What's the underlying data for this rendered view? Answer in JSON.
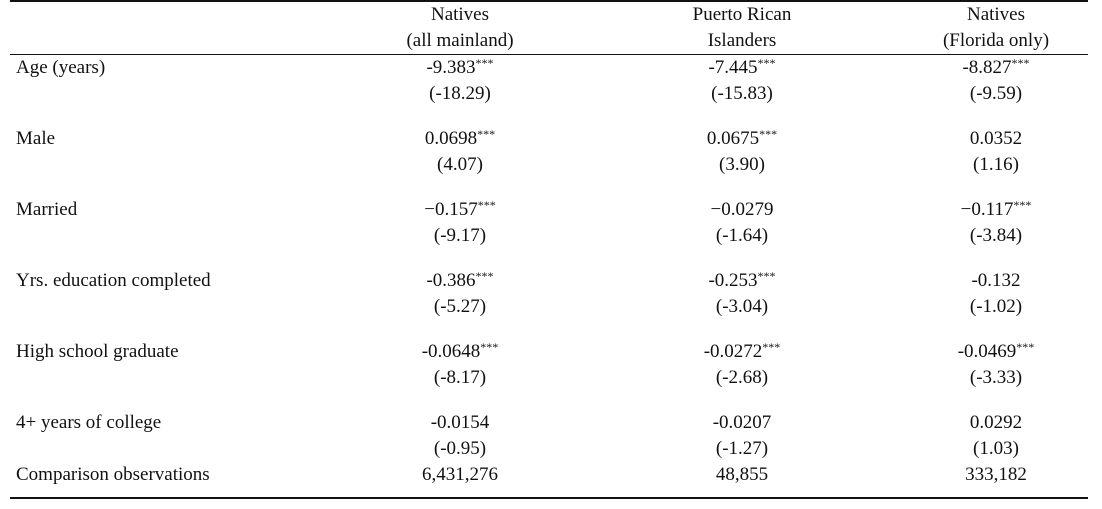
{
  "columns": [
    {
      "line1": "Natives",
      "line2": "(all mainland)"
    },
    {
      "line1": "Puerto Rican",
      "line2": "Islanders"
    },
    {
      "line1": "Natives",
      "line2": "(Florida only)"
    }
  ],
  "rows": [
    {
      "label": "Age (years)",
      "coef": [
        {
          "value": "-9.383",
          "stars": "***"
        },
        {
          "value": "-7.445",
          "stars": "***"
        },
        {
          "value": "-8.827",
          "stars": "***"
        }
      ],
      "tstat": [
        "(-18.29)",
        "(-15.83)",
        "(-9.59)"
      ]
    },
    {
      "label": "Male",
      "coef": [
        {
          "value": "0.0698",
          "stars": "***"
        },
        {
          "value": "0.0675",
          "stars": "***"
        },
        {
          "value": "0.0352",
          "stars": ""
        }
      ],
      "tstat": [
        "(4.07)",
        "(3.90)",
        "(1.16)"
      ]
    },
    {
      "label": "Married",
      "coef": [
        {
          "value": "−0.157",
          "stars": "***"
        },
        {
          "value": "−0.0279",
          "stars": ""
        },
        {
          "value": "−0.117",
          "stars": "***"
        }
      ],
      "tstat": [
        "(-9.17)",
        "(-1.64)",
        "(-3.84)"
      ]
    },
    {
      "label": "Yrs. education completed",
      "coef": [
        {
          "value": "-0.386",
          "stars": "***"
        },
        {
          "value": "-0.253",
          "stars": "***"
        },
        {
          "value": "-0.132",
          "stars": ""
        }
      ],
      "tstat": [
        "(-5.27)",
        "(-3.04)",
        "(-1.02)"
      ]
    },
    {
      "label": "High school graduate",
      "coef": [
        {
          "value": "-0.0648",
          "stars": "***"
        },
        {
          "value": "-0.0272",
          "stars": "***"
        },
        {
          "value": "-0.0469",
          "stars": "***"
        }
      ],
      "tstat": [
        "(-8.17)",
        "(-2.68)",
        "(-3.33)"
      ]
    },
    {
      "label": "4+ years of college",
      "coef": [
        {
          "value": "-0.0154",
          "stars": ""
        },
        {
          "value": "-0.0207",
          "stars": ""
        },
        {
          "value": "0.0292",
          "stars": ""
        }
      ],
      "tstat": [
        "(-0.95)",
        "(-1.27)",
        "(1.03)"
      ]
    }
  ],
  "observations": {
    "label": "Comparison observations",
    "values": [
      "6,431,276",
      "48,855",
      "333,182"
    ]
  }
}
